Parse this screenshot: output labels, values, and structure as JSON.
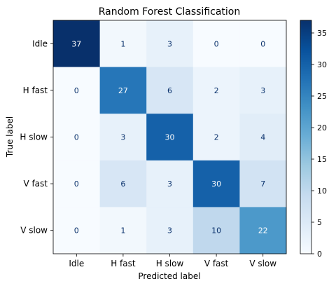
{
  "chart_data": {
    "type": "heatmap",
    "title": "Random Forest  Classification",
    "xlabel": "Predicted label",
    "ylabel": "True label",
    "x_categories": [
      "Idle",
      "H fast",
      "H slow",
      "V fast",
      "V slow"
    ],
    "y_categories": [
      "Idle",
      "H fast",
      "H slow",
      "V fast",
      "V slow"
    ],
    "values": [
      [
        37,
        1,
        3,
        0,
        0
      ],
      [
        0,
        27,
        6,
        2,
        3
      ],
      [
        0,
        3,
        30,
        2,
        4
      ],
      [
        0,
        6,
        3,
        30,
        7
      ],
      [
        0,
        1,
        3,
        10,
        22
      ]
    ],
    "colormap": "Blues",
    "vmin": 0,
    "vmax": 37,
    "colorbar_ticks": [
      0,
      5,
      10,
      15,
      20,
      25,
      30,
      35
    ],
    "text_color_dark_cells": "#ffffff",
    "text_color_light_cells": "#08306b",
    "grid": false
  }
}
